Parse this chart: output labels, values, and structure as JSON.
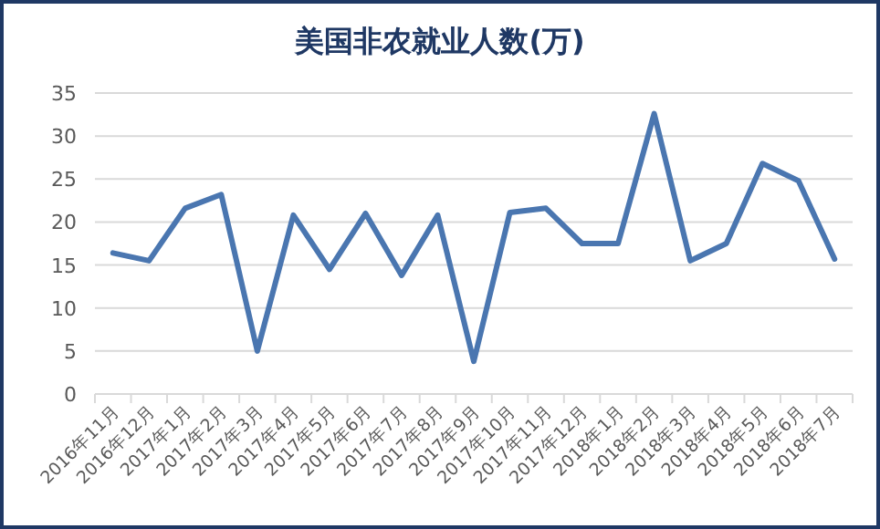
{
  "chart_data": {
    "type": "line",
    "title": "美国非农就业人数(万)",
    "categories": [
      "2016年11月",
      "2016年12月",
      "2017年1月",
      "2017年2月",
      "2017年3月",
      "2017年4月",
      "2017年5月",
      "2017年6月",
      "2017年7月",
      "2017年8月",
      "2017年9月",
      "2017年10月",
      "2017年11月",
      "2017年12月",
      "2018年1月",
      "2018年2月",
      "2018年3月",
      "2018年4月",
      "2018年5月",
      "2018年6月",
      "2018年7月"
    ],
    "series": [
      {
        "color": "#4a76b0",
        "values": [
          16.4,
          15.5,
          21.6,
          23.2,
          5.0,
          20.8,
          14.5,
          21.0,
          13.8,
          20.8,
          3.8,
          21.1,
          21.6,
          17.5,
          17.5,
          32.6,
          15.5,
          17.5,
          26.8,
          24.8,
          15.7
        ]
      }
    ],
    "ylim": [
      0,
      35
    ],
    "yticks": [
      0,
      5,
      10,
      15,
      20,
      25,
      30,
      35
    ],
    "grid": "y"
  }
}
